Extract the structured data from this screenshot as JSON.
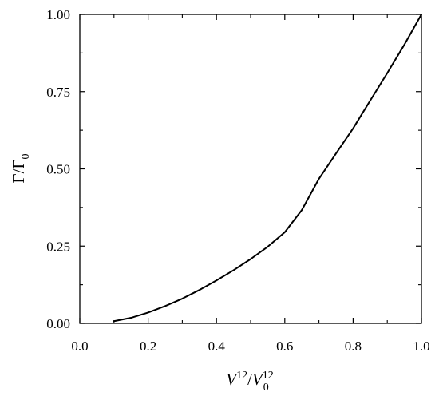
{
  "chart_data": {
    "type": "line",
    "title": "",
    "xlabel": {
      "base": "V",
      "sup": "12",
      "sep": "/",
      "base2": "V",
      "sup2": "12",
      "sub2": "0"
    },
    "ylabel": {
      "base": "Γ",
      "sep": "/",
      "base2": "Γ",
      "sub2": "0"
    },
    "xlim": [
      0.0,
      1.0
    ],
    "ylim": [
      0.0,
      1.0
    ],
    "x_ticks": [
      "0.0",
      "0.2",
      "0.4",
      "0.6",
      "0.8",
      "1.0"
    ],
    "y_ticks": [
      "0.00",
      "0.25",
      "0.50",
      "0.75",
      "1.00"
    ],
    "grid": false,
    "series": [
      {
        "color": "#000000",
        "x": [
          0.1,
          0.15,
          0.2,
          0.25,
          0.3,
          0.35,
          0.4,
          0.45,
          0.5,
          0.55,
          0.6,
          0.65,
          0.7,
          0.75,
          0.8,
          0.85,
          0.9,
          0.95,
          1.0
        ],
        "y": [
          0.007,
          0.018,
          0.035,
          0.056,
          0.08,
          0.108,
          0.139,
          0.172,
          0.208,
          0.248,
          0.295,
          0.367,
          0.468,
          0.55,
          0.631,
          0.721,
          0.81,
          0.902,
          1.0
        ]
      }
    ]
  }
}
